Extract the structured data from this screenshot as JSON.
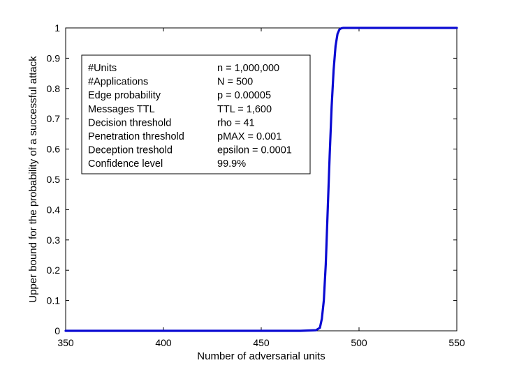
{
  "chart_data": {
    "type": "line",
    "xlabel": "Number of adversarial units",
    "ylabel": "Upper bound for the probability of a successful attack",
    "xlim": [
      350,
      550
    ],
    "ylim": [
      0,
      1
    ],
    "x_ticks": [
      350,
      400,
      450,
      500,
      550
    ],
    "y_ticks": [
      0,
      0.1,
      0.2,
      0.3,
      0.4,
      0.5,
      0.6,
      0.7,
      0.8,
      0.9,
      1
    ],
    "x_tick_labels": [
      "350",
      "400",
      "450",
      "500",
      "550"
    ],
    "y_tick_labels": [
      "0",
      "0.1",
      "0.2",
      "0.3",
      "0.4",
      "0.5",
      "0.6",
      "0.7",
      "0.8",
      "0.9",
      "1"
    ],
    "grid": false,
    "series": [
      {
        "color": "#0a0ad2",
        "x": [
          350,
          400,
          450,
          470,
          478,
          480,
          481,
          482,
          483,
          484,
          485,
          486,
          487,
          488,
          489,
          490,
          491,
          492,
          493,
          500,
          550
        ],
        "y": [
          0,
          0,
          0,
          0,
          0.002,
          0.01,
          0.04,
          0.1,
          0.22,
          0.4,
          0.58,
          0.74,
          0.86,
          0.94,
          0.98,
          0.995,
          0.999,
          1,
          1,
          1,
          1
        ]
      }
    ],
    "annotation_box": {
      "position": "upper-left",
      "rows": [
        {
          "label": "#Units",
          "value": "n = 1,000,000"
        },
        {
          "label": "#Applications",
          "value": "N = 500"
        },
        {
          "label": "Edge probability",
          "value": "p = 0.00005"
        },
        {
          "label": "Messages TTL",
          "value": "TTL = 1,600"
        },
        {
          "label": "Decision threshold",
          "value": "rho = 41"
        },
        {
          "label": "Penetration threshold",
          "value": "pMAX = 0.001"
        },
        {
          "label": "Deception treshold",
          "value": "epsilon = 0.0001"
        },
        {
          "label": "Confidence level",
          "value": "99.9%"
        }
      ]
    }
  }
}
